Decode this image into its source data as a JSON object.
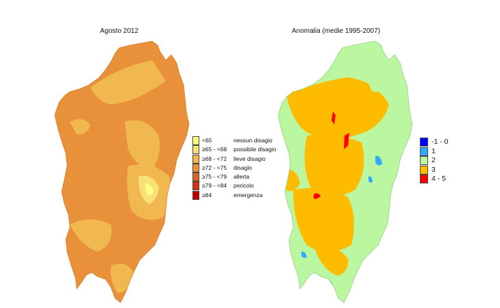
{
  "left_map": {
    "title": "Agosto 2012",
    "legend": [
      {
        "range": "<65",
        "label": "nessun disagio",
        "color": "#ffff80"
      },
      {
        "range": "≥65 - <68",
        "label": "possibile disagio",
        "color": "#f7e27a"
      },
      {
        "range": "≥68 - <72",
        "label": "lieve disagio",
        "color": "#f0b84e"
      },
      {
        "range": "≥72 - <75",
        "label": "disagio",
        "color": "#e8913a"
      },
      {
        "range": "≥75 - <79",
        "label": "allerta",
        "color": "#dc6424"
      },
      {
        "range": "≥79 - <84",
        "label": "pericolo",
        "color": "#d03218"
      },
      {
        "range": "≥84",
        "label": "emergenza",
        "color": "#c00000"
      }
    ]
  },
  "right_map": {
    "title": "Anomalia (medie 1995-2007)",
    "legend": [
      {
        "label": "-1 - 0",
        "color": "#0000ff"
      },
      {
        "label": "1",
        "color": "#33aaff"
      },
      {
        "label": "2",
        "color": "#bbf7a0"
      },
      {
        "label": "3",
        "color": "#ffbb00"
      },
      {
        "label": "4 - 5",
        "color": "#ff0000"
      }
    ]
  }
}
